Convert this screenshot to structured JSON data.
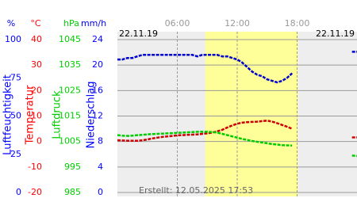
{
  "chart_data": {
    "type": "line",
    "date_left": "22.11.19",
    "date_right": "22.11.19",
    "annotation": "Erstellt: 12.05.2025 17:53",
    "xlim": [
      0,
      24
    ],
    "xticks": [
      {
        "value": 6,
        "label": "06:00"
      },
      {
        "value": 12,
        "label": "12:00"
      },
      {
        "value": 18,
        "label": "18:00"
      }
    ],
    "shaded_span": [
      8.8,
      18.1
    ],
    "grid": true,
    "y_axes": [
      {
        "unit": "%",
        "label": "Luftfeuchtigkeit",
        "color": "#0000ff",
        "ylim": [
          0,
          100
        ],
        "yticks": [
          100,
          75,
          50,
          25,
          0
        ]
      },
      {
        "unit": "°C",
        "label": "Temperatur",
        "color": "#ff0000",
        "ylim": [
          -20,
          40
        ],
        "yticks": [
          40,
          30,
          20,
          10,
          0,
          -10,
          -20
        ]
      },
      {
        "unit": "hPa",
        "label": "Luftdruck",
        "color": "#00cc00",
        "ylim": [
          985,
          1045
        ],
        "yticks": [
          1045,
          1035,
          1025,
          1015,
          1005,
          995,
          985
        ]
      },
      {
        "unit": "mm/h",
        "label": "Niederschlag",
        "color": "#0000ff",
        "ylim": [
          0,
          24
        ],
        "yticks": [
          24,
          20,
          16,
          12,
          8,
          4,
          0
        ]
      }
    ],
    "x": [
      0,
      0.5,
      1,
      1.5,
      2,
      2.5,
      3,
      3.5,
      4,
      4.5,
      5,
      5.5,
      6,
      6.5,
      7,
      7.5,
      8,
      8.5,
      9,
      9.5,
      10,
      10.5,
      11,
      11.5,
      12,
      12.5,
      13,
      13.5,
      14,
      14.5,
      15,
      15.5,
      16,
      16.5,
      17,
      17.5,
      21,
      23.5,
      24
    ],
    "series": [
      {
        "axis": 0,
        "color": "#0000cc",
        "values": [
          87,
          87,
          88,
          88,
          89,
          90,
          90,
          90,
          90,
          90,
          90,
          90,
          90,
          90,
          90,
          90,
          89,
          90,
          90,
          90,
          90,
          89,
          89,
          88,
          87,
          85,
          82,
          79,
          77,
          76,
          74,
          73,
          72,
          73,
          75,
          78,
          null,
          92,
          92
        ]
      },
      {
        "axis": 1,
        "color": "#cc0000",
        "values": [
          0.5,
          0.4,
          0.3,
          0.3,
          0.3,
          0.5,
          0.8,
          1.2,
          1.5,
          1.8,
          2.0,
          2.2,
          2.4,
          2.5,
          2.6,
          2.7,
          2.8,
          3.0,
          3.2,
          3.5,
          4.0,
          4.6,
          5.5,
          6.3,
          7.0,
          7.4,
          7.6,
          7.7,
          7.8,
          8.0,
          8.2,
          7.8,
          7.2,
          6.5,
          5.8,
          5.0,
          null,
          1.6,
          1.6
        ]
      },
      {
        "axis": 2,
        "color": "#00cc00",
        "values": [
          1007.5,
          1007.3,
          1007.2,
          1007.3,
          1007.5,
          1007.6,
          1007.8,
          1007.9,
          1008.0,
          1008.1,
          1008.2,
          1008.3,
          1008.4,
          1008.5,
          1008.6,
          1008.7,
          1008.8,
          1008.8,
          1008.8,
          1008.7,
          1008.5,
          1008.0,
          1007.5,
          1007.0,
          1006.5,
          1006.0,
          1005.6,
          1005.2,
          1004.9,
          1004.6,
          1004.3,
          1004.0,
          1003.8,
          1003.6,
          1003.5,
          1003.4,
          null,
          999.5,
          999.3
        ]
      }
    ]
  }
}
